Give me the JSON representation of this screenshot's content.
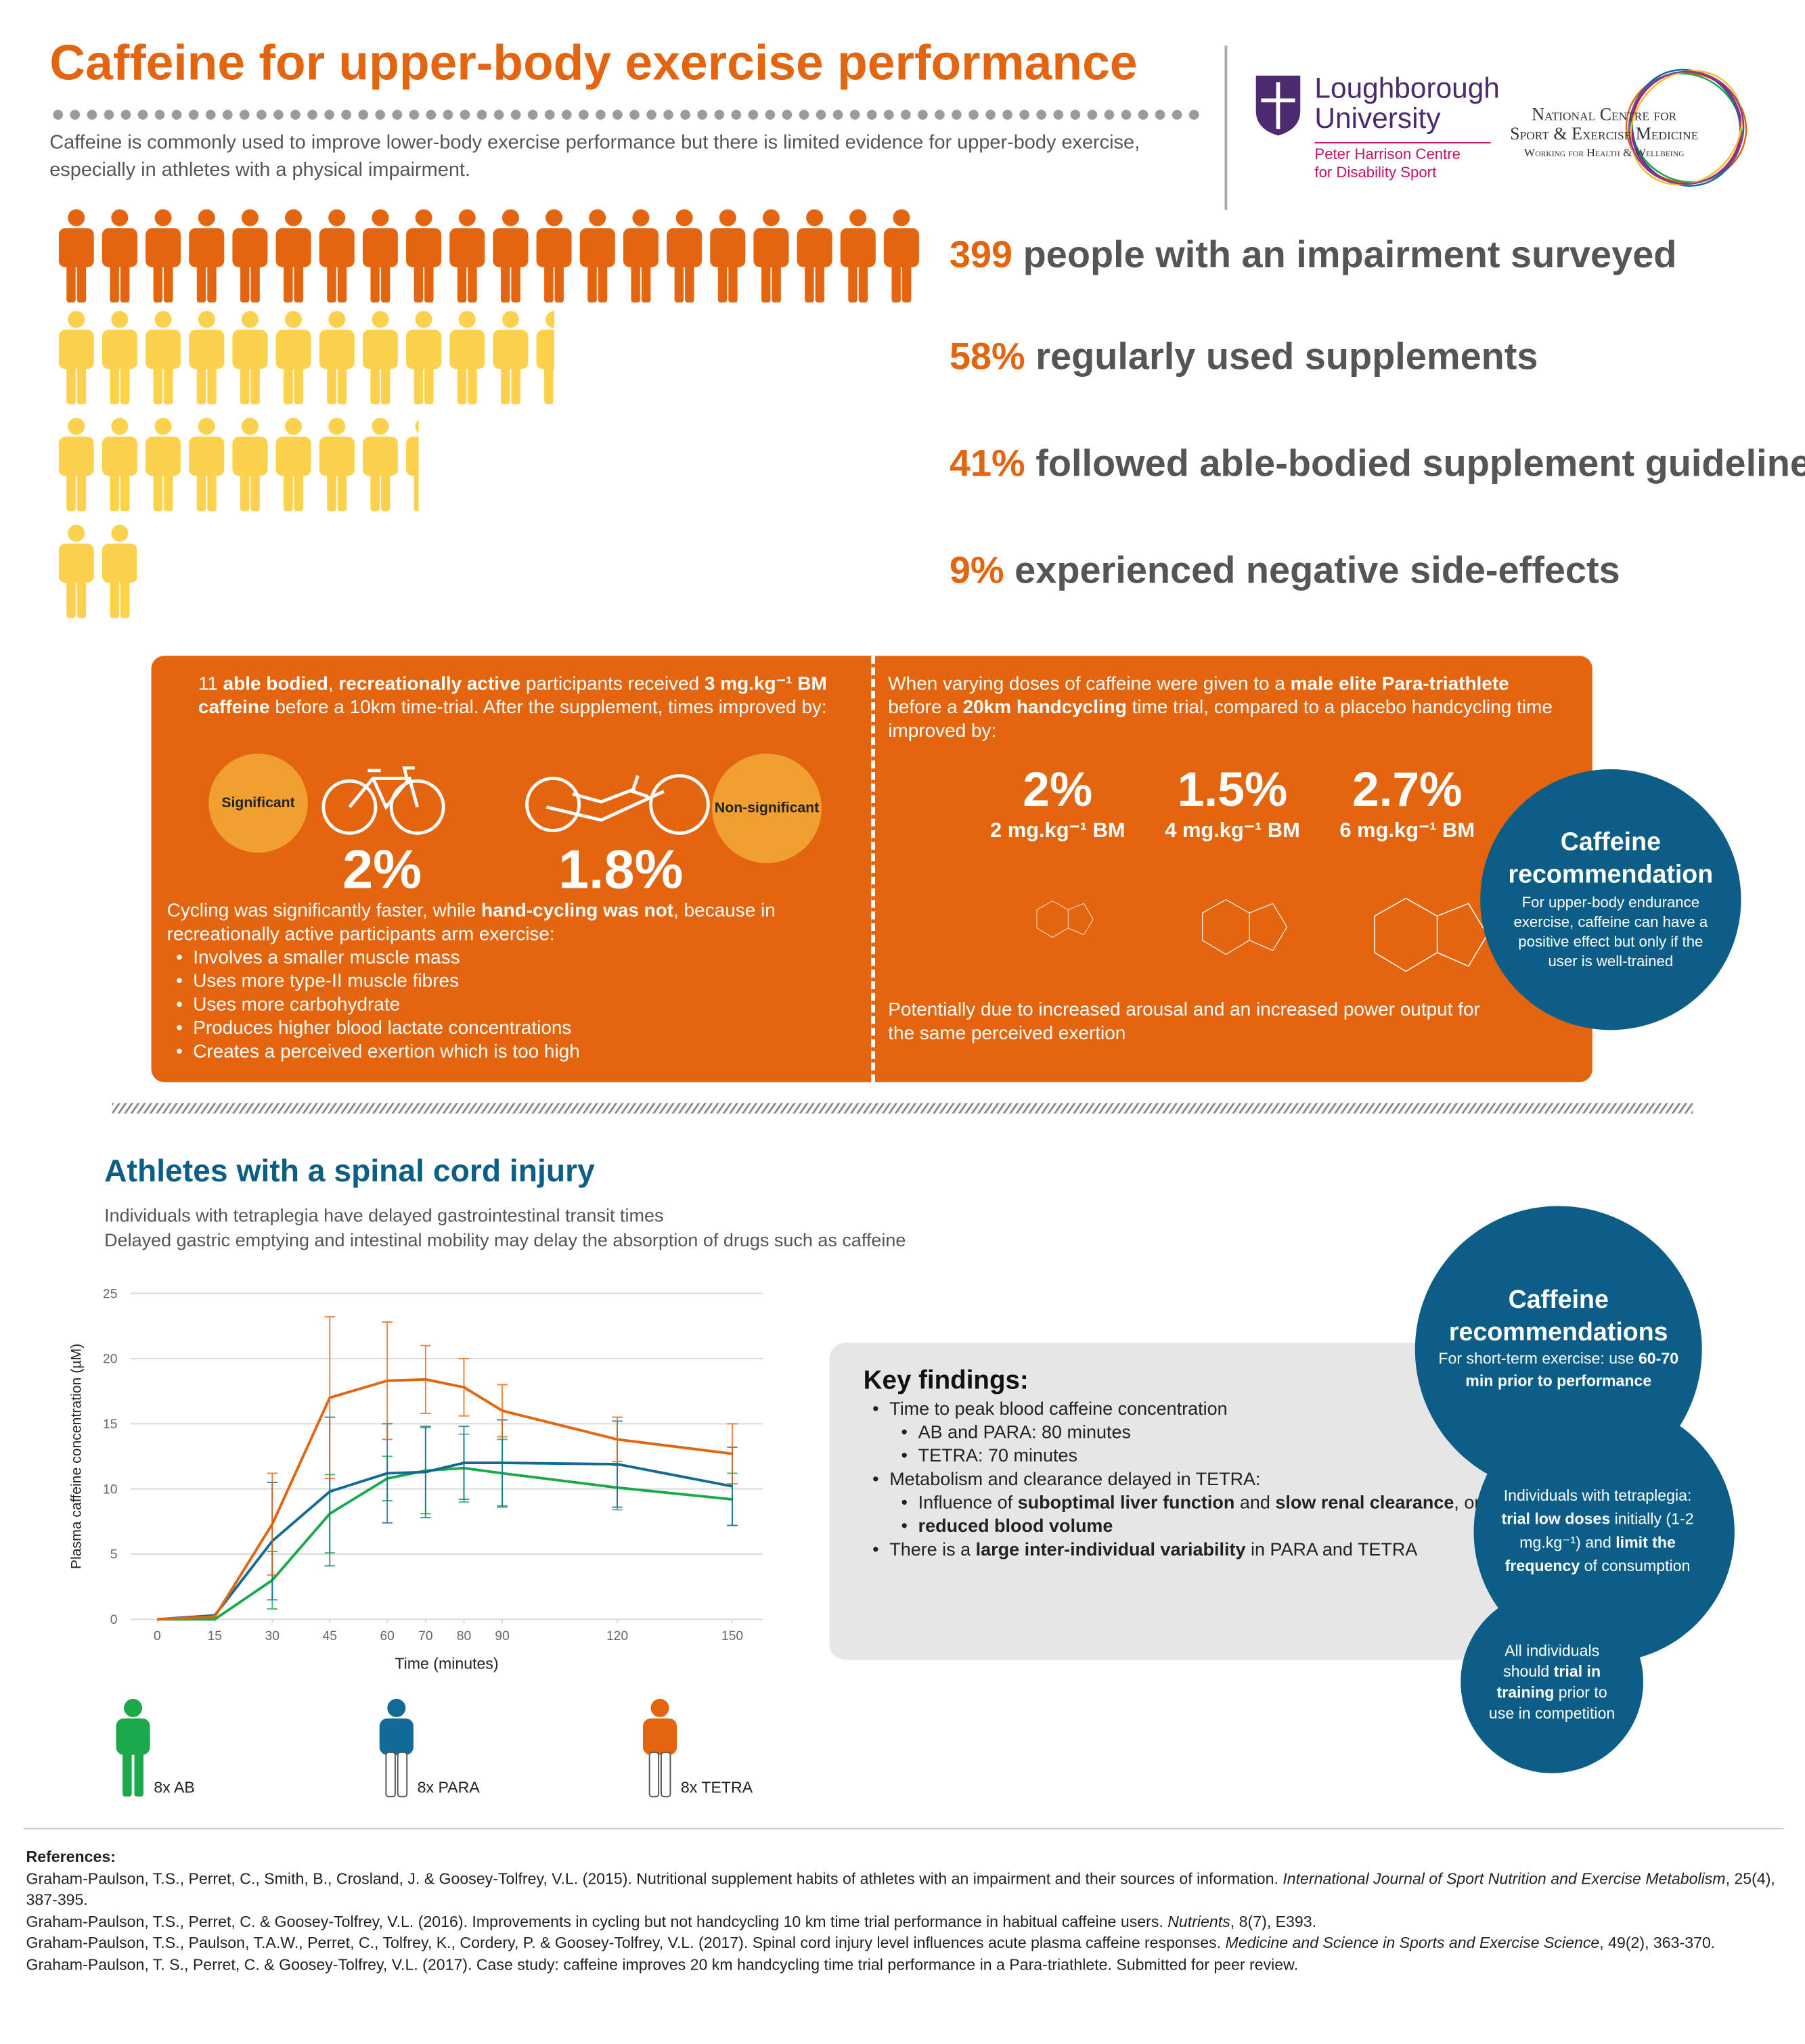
{
  "header": {
    "title": "Caffeine for upper-body exercise performance",
    "intro": "Caffeine is commonly used to improve lower-body exercise performance but there is limited evidence for upper-body exercise, especially in athletes with a physical impairment.",
    "logo1": [
      "Loughborough",
      "University"
    ],
    "logo1_sub": [
      "Peter Harrison Centre",
      "for Disability Sport"
    ],
    "logo2": [
      "National Centre for",
      "Sport & Exercise Medicine"
    ],
    "logo2_sub": "Working for Health & Wellbeing"
  },
  "stats": [
    {
      "number": "399",
      "text": "people with an impairment surveyed"
    },
    {
      "number": "58%",
      "text": "regularly used supplements"
    },
    {
      "number": "41%",
      "text": "followed able-bodied supplement guidelines"
    },
    {
      "number": "9%",
      "text": "experienced negative side-effects"
    }
  ],
  "panel1": {
    "intro": [
      "11 ",
      {
        "text": "able bodied",
        "bold": true
      },
      ", ",
      {
        "text": "recreationally active",
        "bold": true
      },
      " participants received ",
      {
        "text": "3 mg.kg⁻¹ BM caffeine",
        "bold": true
      },
      " before a 10km time-trial. After the supplement, times improved by:"
    ],
    "label_left": "Significant",
    "label_right": "Non-significant",
    "result_left": "2%",
    "result_right": "1.8%",
    "explanation": [
      "Cycling was significantly faster, while ",
      {
        "text": "hand-cycling was not",
        "bold": true
      },
      ", because in recreationally active participants arm exercise:"
    ],
    "bullets": [
      "Involves a smaller muscle mass",
      "Uses more type-II muscle fibres",
      "Uses more carbohydrate",
      "Produces higher blood lactate concentrations",
      "Creates a perceived exertion which is too high"
    ]
  },
  "panel2": {
    "intro": [
      "When varying doses of caffeine were given to a ",
      {
        "text": "male elite Para-triathlete",
        "bold": true
      },
      " before a ",
      {
        "text": "20km handcycling",
        "bold": true
      },
      " time trial, compared to a placebo handcycling time improved by:"
    ],
    "results": [
      {
        "value": "2%",
        "dose": "2 mg.kg⁻¹ BM"
      },
      {
        "value": "1.5%",
        "dose": "4 mg.kg⁻¹ BM"
      },
      {
        "value": "2.7%",
        "dose": "6 mg.kg⁻¹ BM"
      }
    ],
    "outro": "Potentially due to increased arousal and an increased power output for the same perceived exertion"
  },
  "recommendation": {
    "title": "Caffeine recommendation",
    "body": "For upper-body endurance exercise, caffeine can have a positive effect but only if the user is well-trained"
  },
  "section2": {
    "title": "Athletes with a spinal cord injury",
    "lines": [
      "Individuals with tetraplegia have delayed gastrointestinal transit times",
      "Delayed gastric emptying and intestinal mobility may delay the absorption of drugs such as caffeine"
    ]
  },
  "chart_data": {
    "type": "line",
    "xlabel": "Time (minutes)",
    "ylabel": "Plasma caffeine concentration (µM)",
    "x": [
      0,
      15,
      30,
      45,
      60,
      70,
      80,
      90,
      120,
      150
    ],
    "xlim": [
      -7,
      158
    ],
    "xticks": [
      0,
      15,
      30,
      45,
      60,
      70,
      80,
      90,
      120,
      150
    ],
    "ylim": [
      0,
      25
    ],
    "yticks": [
      0,
      5,
      10,
      15,
      20,
      25
    ],
    "grid": true,
    "series": [
      {
        "name": "8x AB",
        "color": "#1aa84b",
        "values": [
          0,
          0,
          3,
          8.1,
          10.8,
          11.4,
          11.6,
          11.2,
          10.1,
          9.2
        ],
        "errors": [
          null,
          null,
          2.2,
          3,
          1.7,
          3.3,
          2.6,
          2.6,
          1.7,
          2
        ]
      },
      {
        "name": "8x PARA",
        "color": "#126a96",
        "values": [
          0,
          0.3,
          6,
          9.8,
          11.2,
          11.3,
          12,
          12,
          11.9,
          10.2
        ],
        "errors": [
          null,
          null,
          4.5,
          5.7,
          3.8,
          3.5,
          2.8,
          3.3,
          3.3,
          3
        ]
      },
      {
        "name": "8x TETRA",
        "color": "#e3650f",
        "values": [
          0,
          0.2,
          7.3,
          17,
          18.3,
          18.4,
          17.8,
          16,
          13.8,
          12.7
        ],
        "errors": [
          null,
          null,
          3.9,
          6.2,
          4.5,
          2.6,
          2.2,
          2,
          1.7,
          2.3
        ]
      }
    ]
  },
  "key_findings": {
    "title": "Key findings:",
    "items": [
      {
        "text": [
          "Time to peak blood caffeine concentration"
        ],
        "sub": [
          [
            "AB and PARA: 80 minutes"
          ],
          [
            "TETRA: 70 minutes"
          ]
        ]
      },
      {
        "text": [
          "Metabolism and clearance delayed in TETRA:"
        ],
        "sub": [
          [
            "Influence of ",
            {
              "text": "suboptimal liver function",
              "bold": true
            },
            " and ",
            {
              "text": "slow renal clearance",
              "bold": true
            },
            ", or"
          ],
          [
            {
              "text": "reduced blood volume",
              "bold": true
            }
          ]
        ]
      },
      {
        "text": [
          "There is a ",
          {
            "text": "large inter-individual variability",
            "bold": true
          },
          " in PARA and TETRA"
        ],
        "sub": []
      }
    ]
  },
  "recommendations": {
    "title": "Caffeine recommendations",
    "body1": [
      "For short-term exercise: use ",
      {
        "text": "60-70 min prior to performance",
        "bold": true
      }
    ],
    "body2": [
      "Individuals with tetraplegia: ",
      {
        "text": "trial low doses",
        "bold": true
      },
      " initially (1-2 mg.kg⁻¹) and ",
      {
        "text": "limit the frequency",
        "bold": true
      },
      " of consumption"
    ],
    "body3": [
      "All individuals should ",
      {
        "text": "trial in training",
        "bold": true
      },
      " prior to use in competition"
    ]
  },
  "references": {
    "title": "References:",
    "items": [
      [
        "Graham-Paulson, T.S., Perret, C., Smith, B., Crosland, J. & Goosey-Tolfrey, V.L. (2015). Nutritional supplement habits of athletes with an impairment and their sources of information. ",
        {
          "text": "International Journal of Sport Nutrition and Exercise Metabolism",
          "italic": true
        },
        ", 25(4), 387-395."
      ],
      [
        "Graham-Paulson, T.S., Perret, C. & Goosey-Tolfrey, V.L. (2016). Improvements in cycling but not handcycling 10 km time trial performance in habitual caffeine users. ",
        {
          "text": "Nutrients",
          "italic": true
        },
        ", 8(7), E393."
      ],
      [
        "Graham-Paulson, T.S., Paulson, T.A.W., Perret, C., Tolfrey, K., Cordery, P. & Goosey-Tolfrey, V.L. (2017). Spinal cord injury level influences acute plasma caffeine responses. ",
        {
          "text": "Medicine and Science in Sports and Exercise Science",
          "italic": true
        },
        ", 49(2), 363-370."
      ],
      [
        "Graham-Paulson, T. S., Perret, C. & Goosey-Tolfrey, V.L. (2017). Case study: caffeine improves 20 km handcycling time trial performance in a Para-triathlete. Submitted for peer review."
      ]
    ]
  }
}
